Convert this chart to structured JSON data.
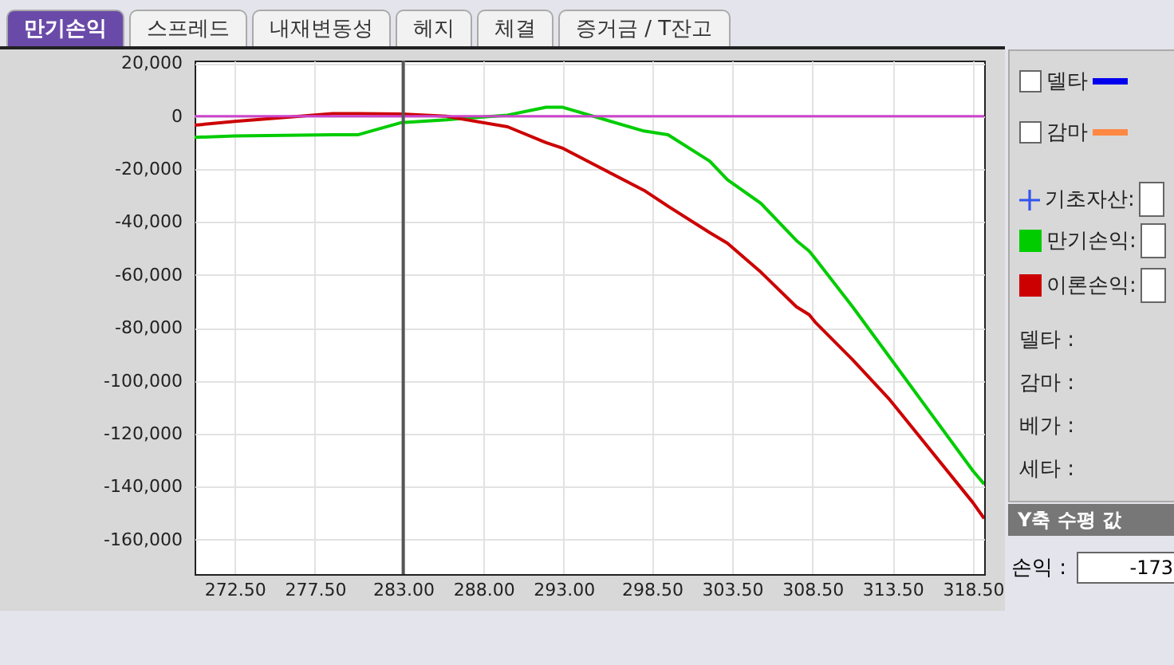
{
  "chart_data": {
    "type": "line",
    "x": [
      270.0,
      272.5,
      278.6,
      280.2,
      282.9,
      285.7,
      286.4,
      289.5,
      291.9,
      292.9,
      298.0,
      299.5,
      302.1,
      303.2,
      305.3,
      307.5,
      308.3,
      308.7,
      311.0,
      313.3,
      318.5,
      319.2
    ],
    "series": [
      {
        "name": "만기손익:",
        "color": "#00cc00",
        "values": [
          -8000,
          -7500,
          -7000,
          -7000,
          -2400,
          -1400,
          -1000,
          400,
          3400,
          3400,
          -5600,
          -7000,
          -17000,
          -24000,
          -33000,
          -47000,
          -51000,
          -54000,
          -72000,
          -91000,
          -134000,
          -139000
        ]
      },
      {
        "name": "이론손익:",
        "color": "#cc0000",
        "values": [
          -3400,
          -2000,
          1000,
          1000,
          800,
          0,
          -800,
          -4000,
          -10000,
          -12000,
          -28000,
          -34000,
          -44000,
          -48000,
          -59000,
          -72000,
          -75000,
          -78000,
          -92000,
          -107000,
          -146000,
          -152000
        ]
      }
    ],
    "xlim": [
      270.0,
      319.2
    ],
    "xticks": [
      {
        "value": 272.5,
        "label": "272.50"
      },
      {
        "value": 277.5,
        "label": "277.50"
      },
      {
        "value": 283.0,
        "label": "283.00"
      },
      {
        "value": 288.0,
        "label": "288.00"
      },
      {
        "value": 293.0,
        "label": "293.00"
      },
      {
        "value": 298.5,
        "label": "298.50"
      },
      {
        "value": 303.5,
        "label": "303.50"
      },
      {
        "value": 308.5,
        "label": "308.50"
      },
      {
        "value": 313.5,
        "label": "313.50"
      },
      {
        "value": 318.5,
        "label": "318.50"
      }
    ],
    "ylim": [
      -173000,
      21000
    ],
    "yticks": [
      {
        "value": 20000,
        "label": "20,000"
      },
      {
        "value": 0,
        "label": "0"
      },
      {
        "value": -20000,
        "label": "-20,000"
      },
      {
        "value": -40000,
        "label": "-40,000"
      },
      {
        "value": -60000,
        "label": "-60,000"
      },
      {
        "value": -80000,
        "label": "-80,000"
      },
      {
        "value": -100000,
        "label": "-100,000"
      },
      {
        "value": -120000,
        "label": "-120,000"
      },
      {
        "value": -140000,
        "label": "-140,000"
      },
      {
        "value": -160000,
        "label": "-160,000"
      }
    ],
    "ref_lines": [
      {
        "axis": "y",
        "value": 0,
        "color": "#cc44cc"
      },
      {
        "axis": "x",
        "value": 283.0,
        "color": "#555555"
      }
    ],
    "grid": true,
    "legend": "right",
    "annotations": [
      "만기손익",
      "스프레드",
      "내재변동성",
      "헤지",
      "체결",
      "증거금 / T잔고",
      "델타",
      "감마",
      "델타 :",
      "감마 :",
      "베가 :",
      "세타 :",
      "Y축 수평 값",
      "손익 :",
      "-173",
      "기초자산:"
    ]
  }
}
